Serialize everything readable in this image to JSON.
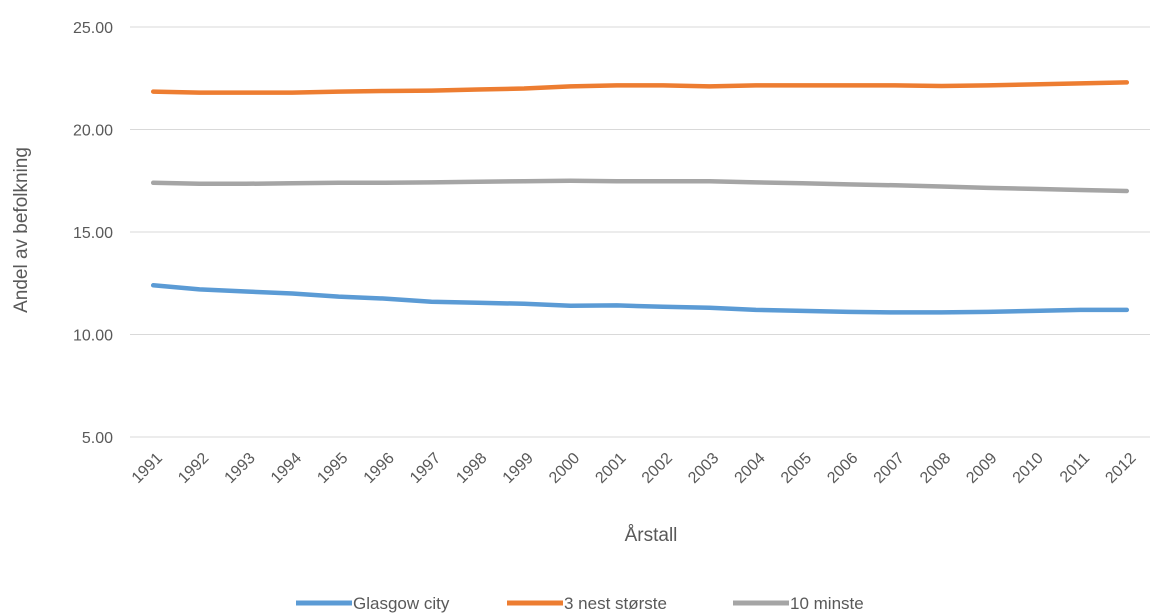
{
  "chart_data": {
    "type": "line",
    "title": "",
    "xlabel": "Årstall",
    "ylabel": "Andel av befolkning",
    "ylim": [
      5,
      25
    ],
    "yticks": [
      "5.00",
      "10.00",
      "15.00",
      "20.00",
      "25.00"
    ],
    "grid": true,
    "legend_position": "bottom",
    "categories": [
      "1991",
      "1992",
      "1993",
      "1994",
      "1995",
      "1996",
      "1997",
      "1998",
      "1999",
      "2000",
      "2001",
      "2002",
      "2003",
      "2004",
      "2005",
      "2006",
      "2007",
      "2008",
      "2009",
      "2010",
      "2011",
      "2012"
    ],
    "series": [
      {
        "name": "Glasgow city",
        "color": "#5B9BD5",
        "values": [
          12.4,
          12.2,
          12.1,
          12.0,
          11.85,
          11.75,
          11.6,
          11.55,
          11.5,
          11.4,
          11.42,
          11.35,
          11.3,
          11.2,
          11.15,
          11.1,
          11.08,
          11.08,
          11.1,
          11.15,
          11.2,
          11.2
        ]
      },
      {
        "name": "3 nest største",
        "color": "#ED7D31",
        "values": [
          21.85,
          21.8,
          21.8,
          21.8,
          21.85,
          21.88,
          21.9,
          21.95,
          22.0,
          22.1,
          22.15,
          22.15,
          22.1,
          22.15,
          22.15,
          22.15,
          22.15,
          22.12,
          22.15,
          22.2,
          22.25,
          22.3
        ]
      },
      {
        "name": "10 minste",
        "color": "#A5A5A5",
        "values": [
          17.4,
          17.35,
          17.35,
          17.38,
          17.4,
          17.4,
          17.42,
          17.45,
          17.48,
          17.5,
          17.48,
          17.48,
          17.48,
          17.42,
          17.38,
          17.32,
          17.28,
          17.22,
          17.15,
          17.1,
          17.05,
          17.0
        ]
      }
    ]
  }
}
